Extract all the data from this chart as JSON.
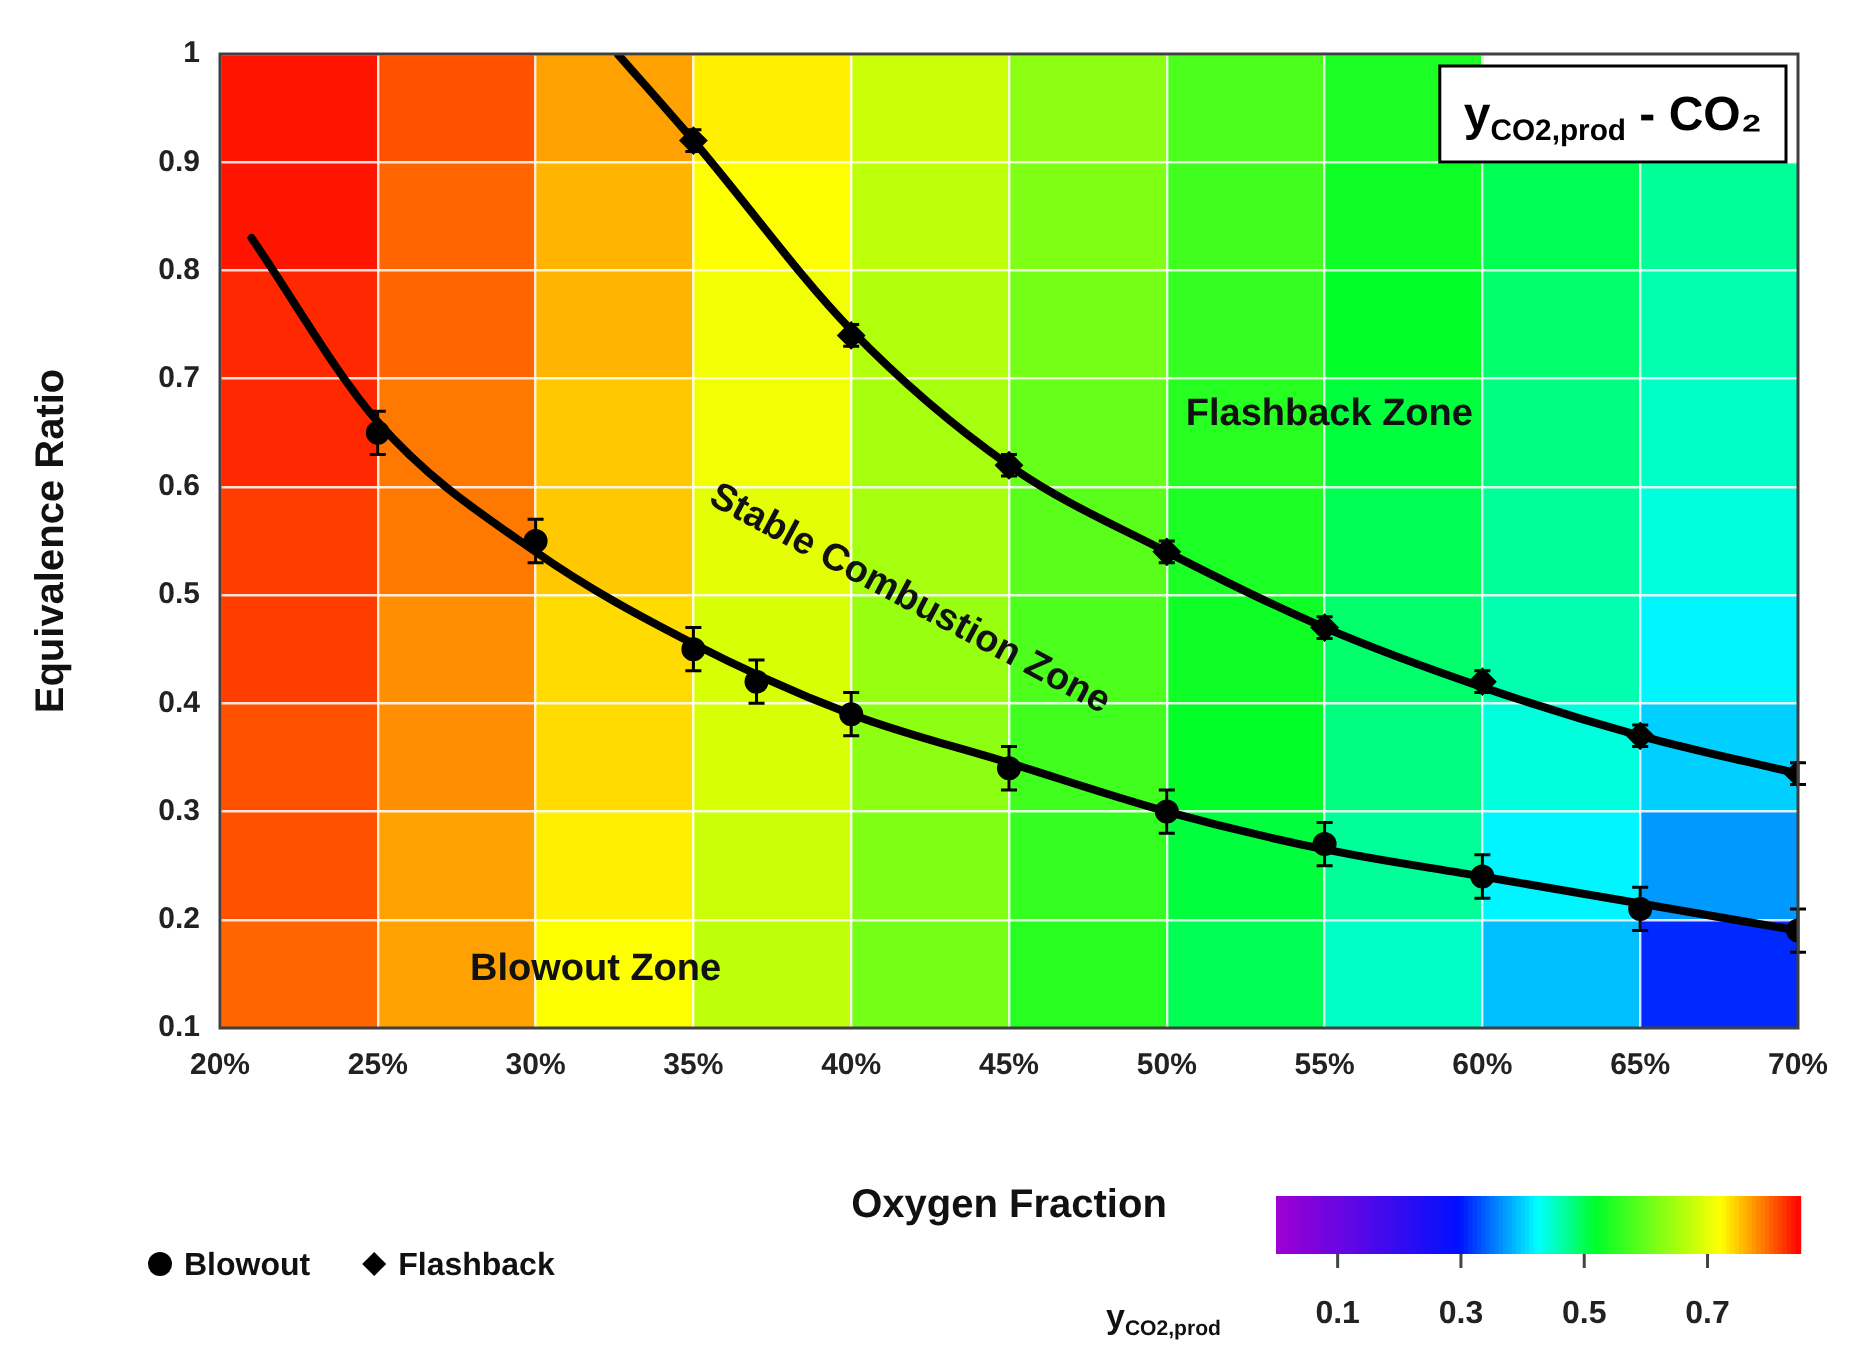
{
  "chart_data": [
    {
      "type": "heatmap",
      "clabel": "y$_{CO2,prod}$",
      "categories": [
        null,
        null,
        null,
        null,
        null,
        null,
        null,
        null,
        null,
        null
      ],
      "y_categories": [
        null,
        null,
        null,
        null,
        null,
        null,
        null,
        null,
        null
      ],
      "cells": [
        [
          0.84,
          0.81,
          0.77,
          0.73,
          0.68,
          0.63,
          0.58,
          0.54,
          null,
          null
        ],
        [
          0.84,
          0.8,
          0.76,
          0.72,
          0.67,
          0.62,
          0.57,
          0.53,
          0.5,
          0.47
        ],
        [
          0.83,
          0.8,
          0.76,
          0.71,
          0.66,
          0.61,
          0.56,
          0.52,
          0.49,
          0.46
        ],
        [
          0.83,
          0.79,
          0.75,
          0.71,
          0.65,
          0.6,
          0.55,
          0.51,
          0.48,
          0.45
        ],
        [
          0.82,
          0.79,
          0.75,
          0.7,
          0.65,
          0.59,
          0.54,
          0.5,
          0.47,
          0.44
        ],
        [
          0.82,
          0.78,
          0.74,
          0.69,
          0.64,
          0.58,
          0.53,
          0.49,
          0.46,
          0.42
        ],
        [
          0.81,
          0.78,
          0.74,
          0.69,
          0.63,
          0.57,
          0.52,
          0.48,
          0.44,
          0.4
        ],
        [
          0.81,
          0.77,
          0.73,
          0.68,
          0.62,
          0.56,
          0.51,
          0.47,
          0.42,
          0.37
        ],
        [
          0.8,
          0.77,
          0.72,
          0.67,
          0.61,
          0.55,
          0.5,
          0.45,
          0.39,
          0.31
        ]
      ],
      "clim": [
        0,
        0.85
      ],
      "cticks": [
        0.1,
        0.3,
        0.5,
        0.7
      ]
    },
    {
      "type": "scatter",
      "title": "y$_{CO2,prod}$ - CO₂",
      "xlabel": "Oxygen Fraction",
      "ylabel": "Equivalence Ratio",
      "xlim": [
        20,
        70
      ],
      "xticks": [
        {
          "value": 20,
          "label": "20%"
        },
        {
          "value": 25,
          "label": "25%"
        },
        {
          "value": 30,
          "label": "30%"
        },
        {
          "value": 35,
          "label": "35%"
        },
        {
          "value": 40,
          "label": "40%"
        },
        {
          "value": 45,
          "label": "45%"
        },
        {
          "value": 50,
          "label": "50%"
        },
        {
          "value": 55,
          "label": "55%"
        },
        {
          "value": 60,
          "label": "60%"
        },
        {
          "value": 65,
          "label": "65%"
        },
        {
          "value": 70,
          "label": "70%"
        }
      ],
      "ylim": [
        0.1,
        1
      ],
      "yticks": [
        0.1,
        0.2,
        0.3,
        0.4,
        0.5,
        0.6,
        0.7,
        0.8,
        0.9,
        1
      ],
      "grid": true,
      "legend": "bottom left",
      "series": [
        {
          "name": "Blowout",
          "type": "scatter",
          "marker": "circle",
          "color": "#000000",
          "x": [
            25,
            30,
            35,
            37,
            40,
            45,
            50,
            55,
            60,
            65,
            70
          ],
          "values": [
            0.65,
            0.55,
            0.45,
            0.42,
            0.39,
            0.34,
            0.3,
            0.27,
            0.24,
            0.21,
            0.19
          ],
          "errors": [
            0.02,
            0.02,
            0.02,
            0.02,
            0.02,
            0.02,
            0.02,
            0.02,
            0.02,
            0.02,
            0.02
          ]
        },
        {
          "name": "Flashback",
          "type": "scatter",
          "marker": "diamond",
          "color": "#000000",
          "x": [
            35,
            40,
            45,
            50,
            55,
            60,
            65,
            70
          ],
          "values": [
            0.92,
            0.74,
            0.62,
            0.54,
            0.47,
            0.42,
            0.37,
            0.335
          ],
          "errors": [
            0.01,
            0.01,
            0.01,
            0.01,
            0.01,
            0.01,
            0.01,
            0.01
          ]
        },
        {
          "type": "line",
          "color": "#000000",
          "x": [
            21,
            25,
            30,
            35,
            40,
            45,
            50,
            55,
            60,
            65,
            70
          ],
          "values": [
            0.83,
            0.66,
            0.54,
            0.455,
            0.39,
            0.345,
            0.3,
            0.265,
            0.24,
            0.215,
            0.19
          ]
        },
        {
          "type": "line",
          "color": "#000000",
          "x": [
            32.6,
            35,
            40,
            45,
            50,
            55,
            60,
            65,
            70
          ],
          "values": [
            1,
            0.92,
            0.745,
            0.62,
            0.54,
            0.47,
            0.415,
            0.37,
            0.335
          ]
        }
      ],
      "annotations": [
        "Flashback Zone",
        "Stable Combustion Zone",
        "Blowout Zone"
      ]
    }
  ]
}
